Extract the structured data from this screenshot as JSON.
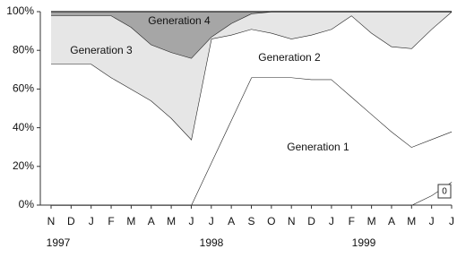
{
  "chart_data": {
    "type": "stacked_area",
    "categories": [
      "N",
      "D",
      "J",
      "F",
      "M",
      "A",
      "M",
      "J",
      "J",
      "A",
      "S",
      "O",
      "N",
      "D",
      "J",
      "F",
      "M",
      "A",
      "M",
      "J",
      "J"
    ],
    "years": [
      "1997",
      "1998",
      "1999"
    ],
    "ylim": [
      0,
      100
    ],
    "yticks": [
      {
        "value": 0,
        "label": "0%"
      },
      {
        "value": 20,
        "label": "20%"
      },
      {
        "value": 40,
        "label": "40%"
      },
      {
        "value": 60,
        "label": "60%"
      },
      {
        "value": 80,
        "label": "80%"
      },
      {
        "value": 100,
        "label": "100%"
      }
    ],
    "series": [
      {
        "name": "0",
        "color": "#ffffff",
        "values": [
          0,
          0,
          0,
          0,
          0,
          0,
          0,
          0,
          0,
          0,
          0,
          0,
          0,
          0,
          0,
          0,
          0,
          0,
          0,
          5,
          12
        ]
      },
      {
        "name": "Generation 1",
        "color": "#ffffff",
        "values": [
          0,
          0,
          0,
          0,
          0,
          0,
          0,
          0,
          22,
          44,
          66,
          66,
          66,
          65,
          65,
          56,
          47,
          38,
          30,
          29,
          26
        ]
      },
      {
        "name": "Generation 2",
        "color": "#ffffff",
        "values": [
          73,
          73,
          73,
          66,
          60,
          54,
          45,
          34,
          64,
          44,
          25,
          23,
          20,
          23,
          26,
          42,
          42,
          44,
          51,
          57,
          62
        ]
      },
      {
        "name": "Generation 3",
        "color": "#e6e6e6",
        "values": [
          25,
          25,
          25,
          32,
          32,
          29,
          34,
          42,
          1,
          6,
          8,
          11,
          14,
          12,
          9,
          2,
          11,
          18,
          19,
          9,
          0
        ]
      },
      {
        "name": "Generation 4",
        "color": "#a6a6a6",
        "values": [
          2,
          2,
          2,
          2,
          8,
          17,
          21,
          24,
          13,
          6,
          1,
          0,
          0,
          0,
          0,
          0,
          0,
          0,
          0,
          0,
          0
        ]
      }
    ]
  }
}
